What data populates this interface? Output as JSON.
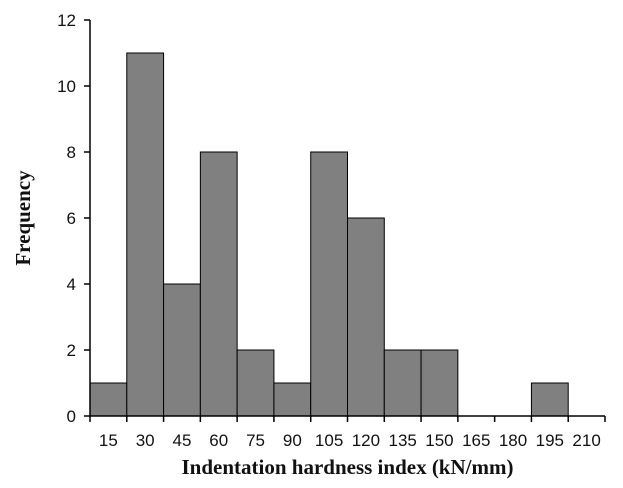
{
  "chart_data": {
    "type": "bar",
    "title": "",
    "xlabel": "Indentation hardness index (kN/mm)",
    "ylabel": "Frequency",
    "categories": [
      "15",
      "30",
      "45",
      "60",
      "75",
      "90",
      "105",
      "120",
      "135",
      "150",
      "165",
      "180",
      "195",
      "210"
    ],
    "values": [
      1,
      11,
      4,
      8,
      2,
      1,
      8,
      6,
      2,
      2,
      0,
      0,
      1,
      0
    ],
    "ylim": [
      0,
      12
    ],
    "yticks": [
      0,
      2,
      4,
      6,
      8,
      10,
      12
    ],
    "grid": false,
    "legend": "none",
    "colors": {
      "bar_fill": "#808080",
      "bar_stroke": "#000000",
      "axis": "#000000"
    }
  }
}
